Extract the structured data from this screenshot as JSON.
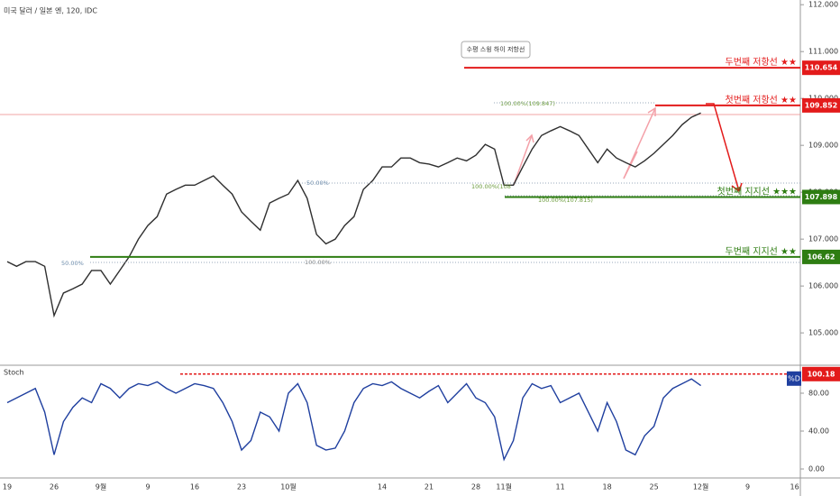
{
  "chart_data": [
    {
      "type": "line",
      "title": "미국 달러 / 일본 엔, 120, IDC",
      "color": "#2f2f2f",
      "categories": [
        "19",
        null,
        null,
        null,
        null,
        "26",
        null,
        null,
        null,
        null,
        "9월",
        null,
        null,
        null,
        null,
        "9",
        null,
        null,
        null,
        null,
        "16",
        null,
        null,
        null,
        null,
        "23",
        null,
        null,
        null,
        null,
        "10월",
        null,
        null,
        null,
        null,
        null,
        null,
        null,
        null,
        null,
        "14",
        null,
        null,
        null,
        null,
        "21",
        null,
        null,
        null,
        null,
        "28",
        null,
        null,
        "11월",
        null,
        null,
        null,
        null,
        null,
        "11",
        null,
        null,
        null,
        null,
        "18",
        null,
        null,
        null,
        null,
        "25",
        null,
        null,
        null,
        null,
        "12월",
        null,
        null,
        null,
        null,
        "9",
        null,
        null,
        null,
        null,
        "16"
      ],
      "values": [
        106.52,
        106.42,
        106.52,
        106.52,
        106.42,
        105.37,
        105.85,
        105.94,
        106.04,
        106.33,
        106.33,
        106.04,
        106.33,
        106.62,
        107.0,
        107.29,
        107.48,
        107.96,
        108.06,
        108.15,
        108.15,
        108.25,
        108.35,
        108.15,
        107.96,
        107.58,
        107.38,
        107.19,
        107.77,
        107.87,
        107.96,
        108.25,
        107.87,
        107.1,
        106.9,
        107.0,
        107.29,
        107.48,
        108.06,
        108.25,
        108.54,
        108.54,
        108.73,
        108.73,
        108.63,
        108.6,
        108.54,
        108.63,
        108.73,
        108.67,
        108.79,
        109.02,
        108.92,
        108.15,
        108.15,
        108.54,
        108.92,
        109.21,
        109.31,
        109.4,
        109.31,
        109.21,
        108.92,
        108.63,
        108.92,
        108.73,
        108.63,
        108.54,
        108.67,
        108.83,
        109.02,
        109.21,
        109.44,
        109.6,
        109.69,
        null,
        null,
        null,
        null,
        null,
        null,
        null,
        null,
        null,
        null
      ],
      "ylim": [
        104.31,
        112.1
      ],
      "yticks": [
        {
          "value": 105,
          "label": "105.000"
        },
        {
          "value": 106,
          "label": "106.000"
        },
        {
          "value": 107,
          "label": "107.000"
        },
        {
          "value": 108,
          "label": "108.000"
        },
        {
          "value": 109,
          "label": "109.000"
        },
        {
          "value": 110,
          "label": "110.000"
        },
        {
          "value": 111,
          "label": "111.000"
        },
        {
          "value": 112,
          "label": "112.000"
        }
      ],
      "levels": [
        {
          "label": "두번째 저항선 ★★",
          "value": 110.654,
          "color": "#e31b1b"
        },
        {
          "label": "첫번째 저항선 ★★",
          "value": 109.852,
          "color": "#e31b1b"
        },
        {
          "label": "첫번째 지지선 ★★★",
          "value": 107.898,
          "color": "#2e7d12"
        },
        {
          "label": "두번째 지지선 ★★",
          "value": 106.62,
          "color": "#2e7d12"
        }
      ],
      "annotations": [
        "수평 스윙 하이 저항선",
        "100.00%(109.847)",
        "100.00%(108",
        "100.00%(107.815)",
        "50.00%",
        "50.00%",
        "100.00%"
      ]
    },
    {
      "type": "line",
      "title": "Stoch",
      "legend": "%D",
      "color": "#1f3f9f",
      "values": [
        70,
        75,
        80,
        85,
        60,
        15,
        50,
        65,
        75,
        70,
        90,
        85,
        75,
        85,
        90,
        88,
        92,
        85,
        80,
        85,
        90,
        88,
        85,
        70,
        50,
        20,
        30,
        60,
        55,
        40,
        80,
        90,
        70,
        25,
        20,
        22,
        40,
        70,
        85,
        90,
        88,
        92,
        85,
        80,
        75,
        82,
        88,
        70,
        80,
        90,
        75,
        70,
        55,
        10,
        30,
        75,
        90,
        85,
        88,
        70,
        75,
        80,
        60,
        40,
        70,
        50,
        20,
        15,
        35,
        45,
        75,
        85,
        90,
        95,
        88
      ],
      "ylim": [
        -9.5,
        109.5
      ],
      "yticks": [
        {
          "value": 0,
          "label": "0.00"
        },
        {
          "value": 40,
          "label": "40.00"
        },
        {
          "value": 80,
          "label": "80.00"
        }
      ],
      "level": 100.18
    }
  ]
}
